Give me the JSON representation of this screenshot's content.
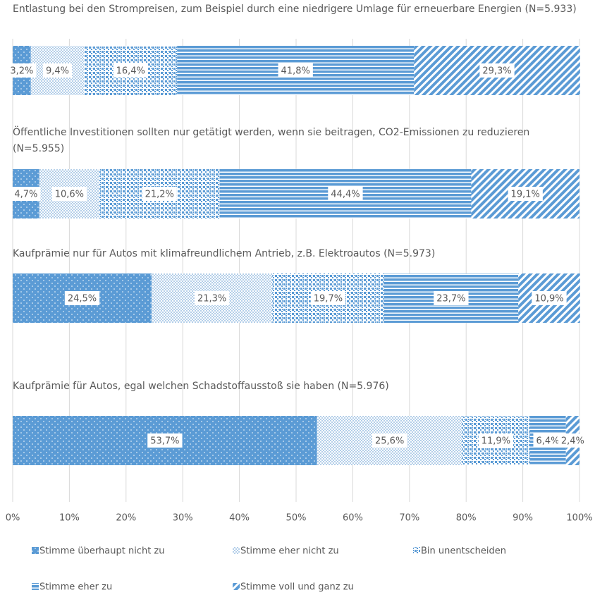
{
  "chart_data": {
    "type": "stacked-bar-horizontal",
    "categories": [
      "Entlastung bei den Strompreisen, zum Beispiel durch eine niedrigere Umlage für erneuerbare Energien (N=5.933)",
      "Öffentliche Investitionen sollten nur getätigt werden, wenn sie beitragen, CO2-Emissionen zu reduzieren (N=5.955)",
      "Kaufprämie nur für Autos mit klimafreundlichem Antrieb, z.B. Elektroautos (N=5.973)",
      "Kaufprämie für Autos, egal welchen Schadstoffausstoß sie haben (N=5.976)"
    ],
    "series": [
      {
        "name": "Stimme überhaupt nicht zu",
        "color": "#5b9bd5",
        "values": [
          3.2,
          4.7,
          24.5,
          53.7
        ],
        "value_labels": [
          "3,2%",
          "4,7%",
          "24,5%",
          "53,7%"
        ]
      },
      {
        "name": "Stimme eher nicht zu",
        "color": "#5b9bd5",
        "values": [
          9.4,
          10.6,
          21.3,
          25.6
        ],
        "value_labels": [
          "9,4%",
          "10,6%",
          "21,3%",
          "25,6%"
        ]
      },
      {
        "name": "Bin unentscheiden",
        "color": "#5b9bd5",
        "values": [
          16.4,
          21.2,
          19.7,
          11.9
        ],
        "value_labels": [
          "16,4%",
          "21,2%",
          "19,7%",
          "11,9%"
        ]
      },
      {
        "name": "Stimme eher zu",
        "color": "#5b9bd5",
        "values": [
          41.8,
          44.4,
          23.7,
          6.4
        ],
        "value_labels": [
          "41,8%",
          "44,4%",
          "23,7%",
          "6,4%"
        ]
      },
      {
        "name": "Stimme voll und ganz zu",
        "color": "#5b9bd5",
        "values": [
          29.3,
          19.1,
          10.9,
          2.4
        ],
        "value_labels": [
          "29,3%",
          "19,1%",
          "10,9%",
          "2,4%"
        ]
      }
    ],
    "xlim": [
      0,
      100
    ],
    "xticks": [
      {
        "value": 0,
        "label": "0%"
      },
      {
        "value": 10,
        "label": "10%"
      },
      {
        "value": 20,
        "label": "20%"
      },
      {
        "value": 30,
        "label": "30%"
      },
      {
        "value": 40,
        "label": "40%"
      },
      {
        "value": 50,
        "label": "50%"
      },
      {
        "value": 60,
        "label": "60%"
      },
      {
        "value": 70,
        "label": "70%"
      },
      {
        "value": 80,
        "label": "80%"
      },
      {
        "value": 90,
        "label": "90%"
      },
      {
        "value": 100,
        "label": "100%"
      }
    ],
    "grid": true,
    "legend": "bottom"
  }
}
